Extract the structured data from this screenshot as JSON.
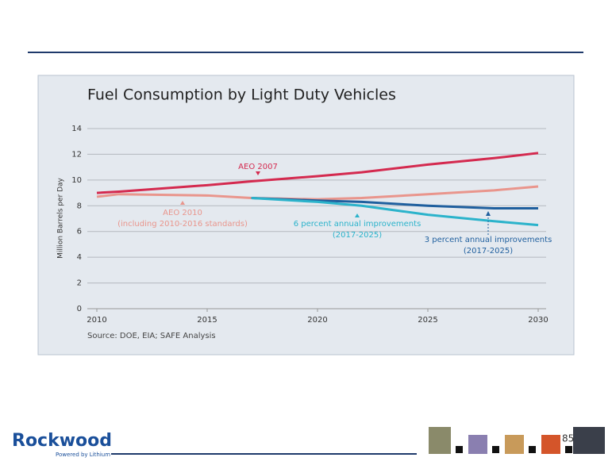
{
  "chart_data": {
    "type": "line",
    "title": "Fuel Consumption by Light Duty Vehicles",
    "y_label": "Million Barrels per Day",
    "source": "Source: DOE, EIA; SAFE Analysis",
    "annotations": [
      "AEO 2007",
      "AEO 2010",
      "(including 2010-2016 standards)",
      "6 percent annual improvements",
      "(2017-2025)",
      "3 percent annual improvements",
      "(2017-2025)"
    ],
    "x": [
      2010,
      2011,
      2015,
      2017,
      2020,
      2022,
      2025,
      2028,
      2030
    ],
    "series": [
      {
        "name": "AEO 2007",
        "color": "#d42a4f",
        "values": [
          9.0,
          9.1,
          9.6,
          9.9,
          10.3,
          10.6,
          11.2,
          11.7,
          12.1
        ]
      },
      {
        "name": "AEO 2010",
        "color": "#e9958c",
        "values": [
          8.7,
          8.9,
          8.8,
          8.6,
          8.5,
          8.6,
          8.9,
          9.2,
          9.5
        ]
      },
      {
        "name": "3 percent annual improvements",
        "color": "#1f5f9e",
        "values": [
          null,
          null,
          null,
          8.6,
          8.4,
          8.3,
          8.0,
          7.8,
          7.8
        ]
      },
      {
        "name": "6 percent annual improvements",
        "color": "#2bb3cb",
        "values": [
          null,
          null,
          null,
          8.6,
          8.3,
          8.0,
          7.3,
          6.8,
          6.5
        ]
      }
    ],
    "xlim": [
      2010,
      2030
    ],
    "xticks": [
      2010,
      2015,
      2020,
      2025,
      2030
    ],
    "ylim": [
      0,
      14
    ],
    "yticks": [
      0,
      2,
      4,
      6,
      8,
      10,
      12,
      14
    ],
    "grid": true
  },
  "slide": {
    "logo": "Rockwood",
    "logo_tagline": "Powered by Lithium",
    "page_number": 85
  }
}
